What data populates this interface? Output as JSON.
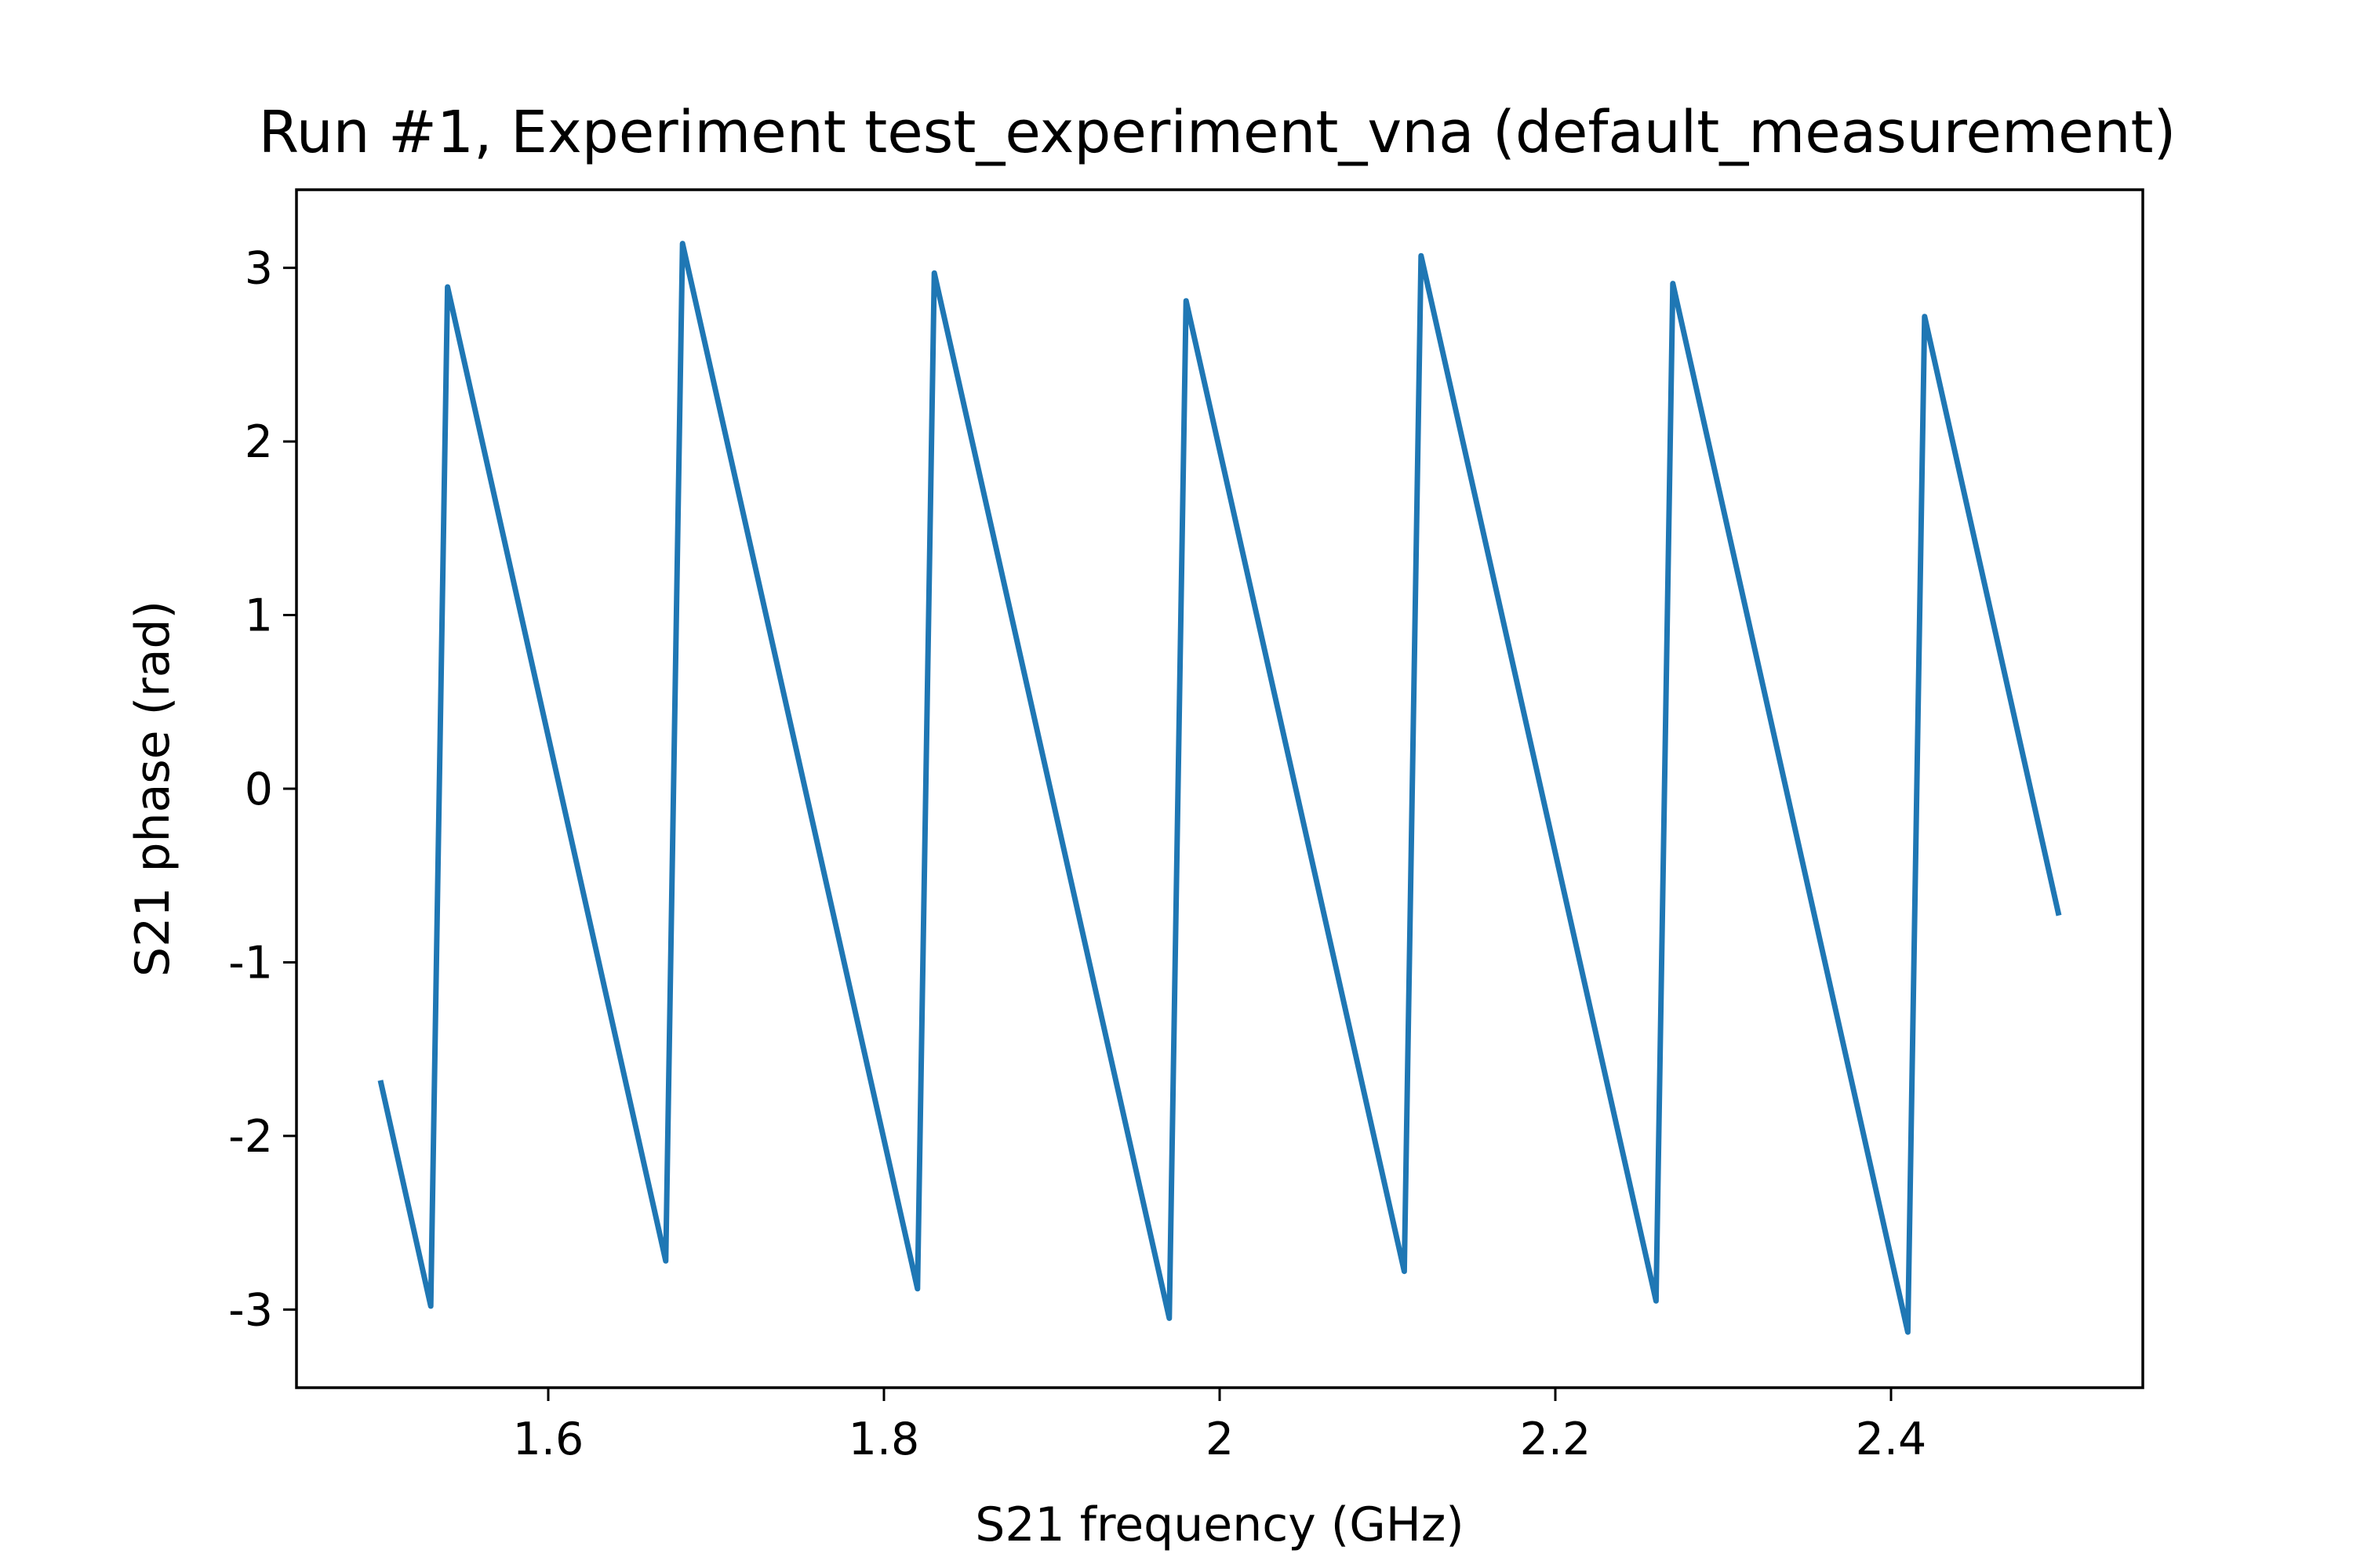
{
  "chart_data": {
    "type": "line",
    "title": "Run #1, Experiment test_experiment_vna (default_measurement)",
    "xlabel": "S21 frequency (GHz)",
    "ylabel": "S21 phase (rad)",
    "xlim": [
      1.45,
      2.55
    ],
    "ylim": [
      -3.45,
      3.45
    ],
    "x_ticks": [
      1.6,
      1.8,
      2.0,
      2.2,
      2.4
    ],
    "x_tick_labels": [
      "1.6",
      "1.8",
      "2",
      "2.2",
      "2.4"
    ],
    "y_ticks": [
      3,
      2,
      1,
      0,
      -1,
      -2,
      -3
    ],
    "y_tick_labels": [
      "3",
      "2",
      "1",
      "0",
      "-1",
      "-2",
      "-3"
    ],
    "grid": false,
    "line_color": "#1f77b4",
    "series": [
      {
        "x": [
          1.5,
          1.53,
          1.54,
          1.67,
          1.68,
          1.82,
          1.83,
          1.97,
          1.98,
          2.11,
          2.12,
          2.26,
          2.27,
          2.41,
          2.42,
          2.5
        ],
        "y": [
          -1.68,
          -2.98,
          2.89,
          -2.72,
          3.14,
          -2.88,
          2.97,
          -3.05,
          2.81,
          -2.78,
          3.07,
          -2.95,
          2.91,
          -3.13,
          2.72,
          -0.73
        ]
      }
    ]
  }
}
